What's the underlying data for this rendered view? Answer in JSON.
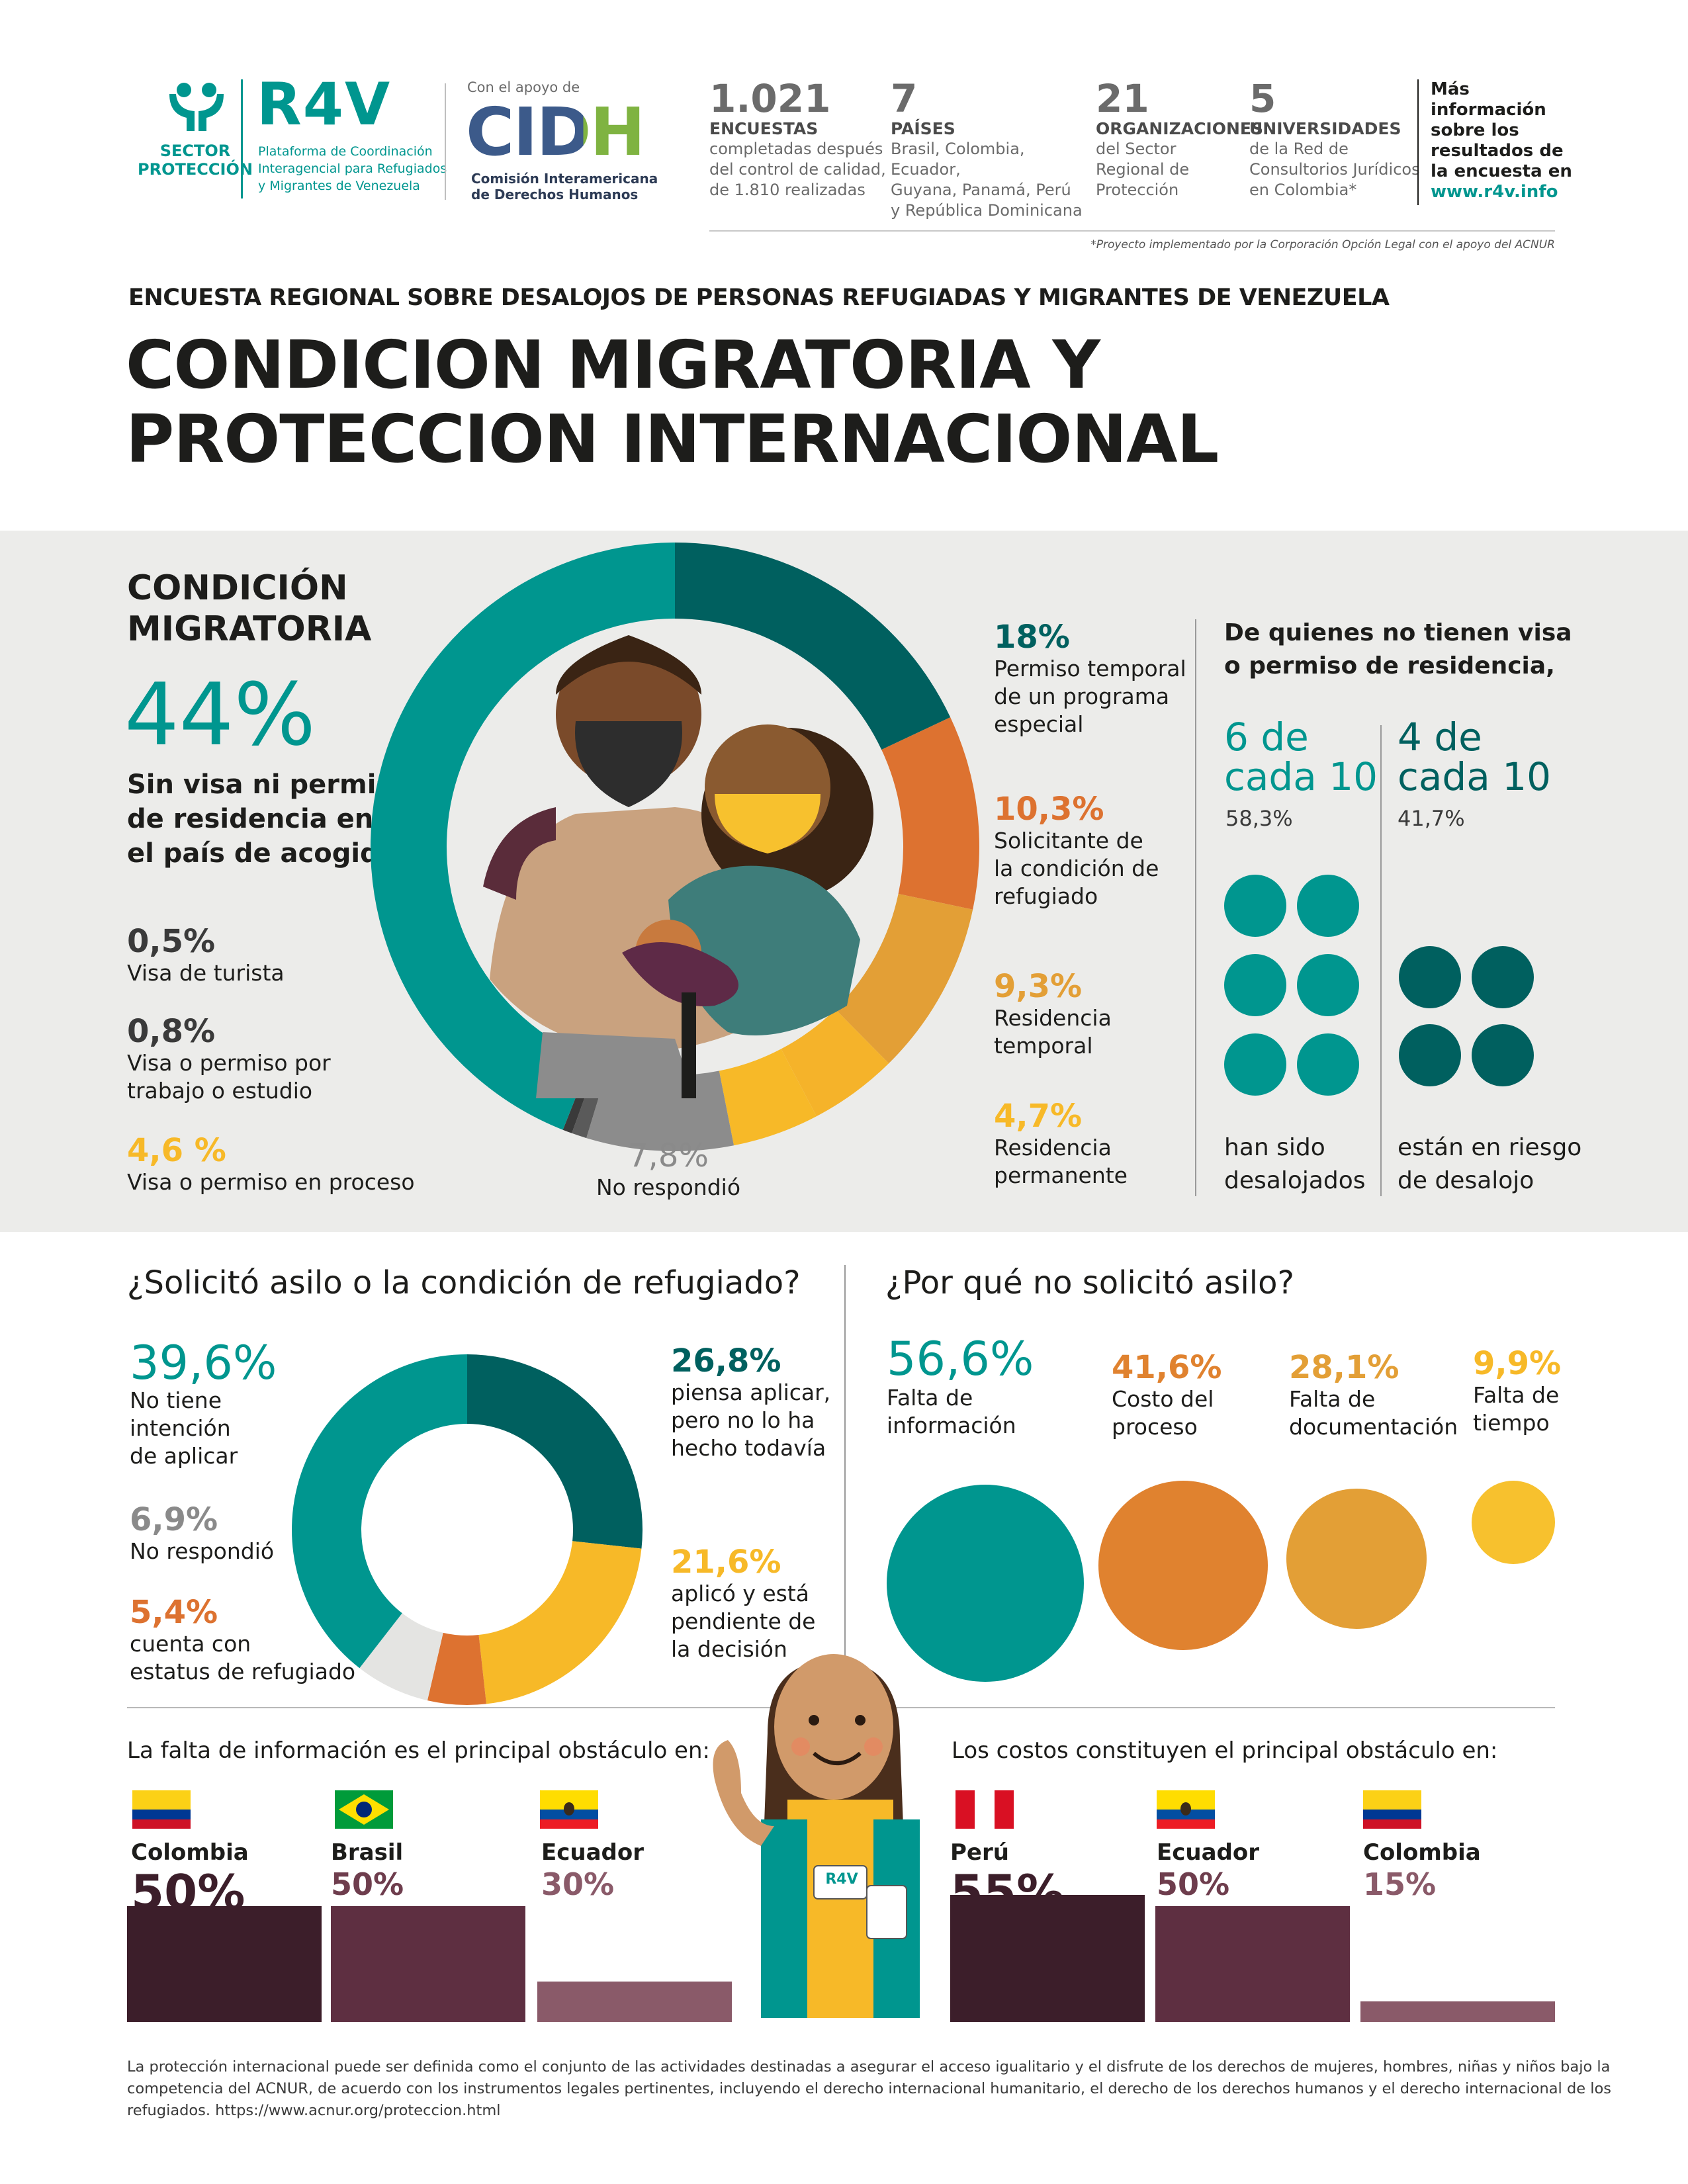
{
  "header": {
    "sector_label_1": "SECTOR",
    "sector_label_2": "PROTECCIÓN",
    "r4v_logo": "R4V",
    "r4v_sub_1": "Plataforma de Coordinación",
    "r4v_sub_2": "Interagencial para Refugiados",
    "r4v_sub_3": "y Migrantes de Venezuela",
    "support_label": "Con el apoyo de",
    "cidh_logo": "CIDH",
    "cidh_sub_1": "Comisión Interamericana",
    "cidh_sub_2": "de Derechos Humanos",
    "stats": [
      {
        "number": "1.021",
        "label": "ENCUESTAS",
        "desc_1": "completadas después",
        "desc_2": "del control de calidad,",
        "desc_3": "de 1.810 realizadas",
        "desc_4": ""
      },
      {
        "number": "7",
        "label": "PAÍSES",
        "desc_1": "Brasil, Colombia, Ecuador,",
        "desc_2": "Guyana, Panamá, Perú",
        "desc_3": "y República Dominicana",
        "desc_4": ""
      },
      {
        "number": "21",
        "label": "ORGANIZACIONES",
        "desc_1": "del Sector",
        "desc_2": "Regional de",
        "desc_3": "Protección",
        "desc_4": ""
      },
      {
        "number": "5",
        "label": "UNIVERSIDADES",
        "desc_1": "de la Red de",
        "desc_2": "Consultorios Jurídicos",
        "desc_3": "en Colombia*",
        "desc_4": ""
      }
    ],
    "more_info_1": "Más",
    "more_info_2": "información",
    "more_info_3": "sobre los",
    "more_info_4": "resultados de",
    "more_info_5": "la encuesta en",
    "more_info_link": "www.r4v.info",
    "footnote": "*Proyecto implementado por la Corporación Opción Legal con el apoyo del ACNUR"
  },
  "title": {
    "subtitle": "ENCUESTA REGIONAL SOBRE DESALOJOS DE PERSONAS REFUGIADAS Y MIGRANTES DE VENEZUELA",
    "line_1": "CONDICION MIGRATORIA Y",
    "line_2": "PROTECCION INTERNACIONAL"
  },
  "condicion": {
    "heading_1": "CONDICIÓN",
    "heading_2": "MIGRATORIA",
    "main_pct": "44%",
    "main_lbl_1": "Sin visa ni permiso",
    "main_lbl_2": "de residencia en",
    "main_lbl_3": "el país de acogida",
    "left_items": [
      {
        "pct": "0,5%",
        "lbl_1": "Visa de turista",
        "lbl_2": ""
      },
      {
        "pct": "0,8%",
        "lbl_1": "Visa o permiso por",
        "lbl_2": "trabajo o estudio"
      },
      {
        "pct": "4,6 %",
        "lbl_1": "Visa o permiso en proceso",
        "lbl_2": ""
      }
    ],
    "no_resp_pct": "7,8%",
    "no_resp_lbl": "No respondió",
    "right_items": [
      {
        "pct": "18%",
        "lbl_1": "Permiso temporal",
        "lbl_2": "de un programa",
        "lbl_3": "especial"
      },
      {
        "pct": "10,3%",
        "lbl_1": "Solicitante de",
        "lbl_2": "la condición de",
        "lbl_3": "refugiado"
      },
      {
        "pct": "9,3%",
        "lbl_1": "Residencia",
        "lbl_2": "temporal",
        "lbl_3": ""
      },
      {
        "pct": "4,7%",
        "lbl_1": "Residencia",
        "lbl_2": "permanente",
        "lbl_3": ""
      }
    ],
    "no_visa_heading_1": "De quienes no tienen visa",
    "no_visa_heading_2": "o permiso de residencia,",
    "group_a_1": "6 de",
    "group_a_2": "cada 10",
    "group_a_pct": "58,3%",
    "group_a_lbl_1": "han sido",
    "group_a_lbl_2": "desalojados",
    "group_b_1": "4 de",
    "group_b_2": "cada 10",
    "group_b_pct": "41,7%",
    "group_b_lbl_1": "están en riesgo",
    "group_b_lbl_2": "de desalojo",
    "colors": {
      "teal": "#00968f",
      "dark_teal": "#00605f",
      "orange": "#dd7230",
      "amber": "#e39f36",
      "yellow": "#f7b928",
      "grey": "#8c8c8c"
    }
  },
  "asilo": {
    "heading": "¿Solicitó asilo o  la condición de refugiado?",
    "items_left": [
      {
        "pct": "39,6%",
        "lbl_1": "No tiene",
        "lbl_2": "intención",
        "lbl_3": "de aplicar"
      },
      {
        "pct": "6,9%",
        "lbl_1": "No respondió",
        "lbl_2": "",
        "lbl_3": ""
      },
      {
        "pct": "5,4%",
        "lbl_1": "cuenta con",
        "lbl_2": "estatus de refugiado",
        "lbl_3": ""
      }
    ],
    "items_right": [
      {
        "pct": "26,8%",
        "lbl_1": "piensa aplicar,",
        "lbl_2": "pero no lo ha",
        "lbl_3": "hecho todavía"
      },
      {
        "pct": "21,6%",
        "lbl_1": "aplicó y está",
        "lbl_2": "pendiente de",
        "lbl_3": "la decisión"
      }
    ]
  },
  "porque": {
    "heading": "¿Por qué no solicitó asilo?",
    "items": [
      {
        "pct": "56,6%",
        "lbl_1": "Falta de",
        "lbl_2": "información"
      },
      {
        "pct": "41,6%",
        "lbl_1": "Costo del",
        "lbl_2": "proceso"
      },
      {
        "pct": "28,1%",
        "lbl_1": "Falta de",
        "lbl_2": "documentación"
      },
      {
        "pct": "9,9%",
        "lbl_1": "Falta de",
        "lbl_2": "tiempo"
      }
    ]
  },
  "falta_info": {
    "heading": "La falta de información es el principal obstáculo en:",
    "countries": [
      {
        "name": "Colombia",
        "pct": "50%",
        "value": 50
      },
      {
        "name": "Brasil",
        "pct": "50%",
        "value": 50
      },
      {
        "name": "Ecuador",
        "pct": "30%",
        "value": 30
      }
    ]
  },
  "costos": {
    "heading": "Los costos constituyen el principal obstáculo en:",
    "countries": [
      {
        "name": "Perú",
        "pct": "55%",
        "value": 55
      },
      {
        "name": "Ecuador",
        "pct": "50%",
        "value": 50
      },
      {
        "name": "Colombia",
        "pct": "15%",
        "value": 15
      }
    ]
  },
  "badge_text": "R4V",
  "footer": {
    "line_1": "La protección internacional puede ser definida como el conjunto de las actividades destinadas a asegurar el acceso igualitario y el disfrute de los derechos de mujeres, hombres, niñas y niños bajo la",
    "line_2": "competencia del ACNUR, de acuerdo con los instrumentos legales pertinentes, incluyendo el derecho internacional humanitario, el derecho de los derechos humanos y el derecho internacional de los",
    "line_3": "refugiados. https://www.acnur.org/proteccion.html"
  }
}
